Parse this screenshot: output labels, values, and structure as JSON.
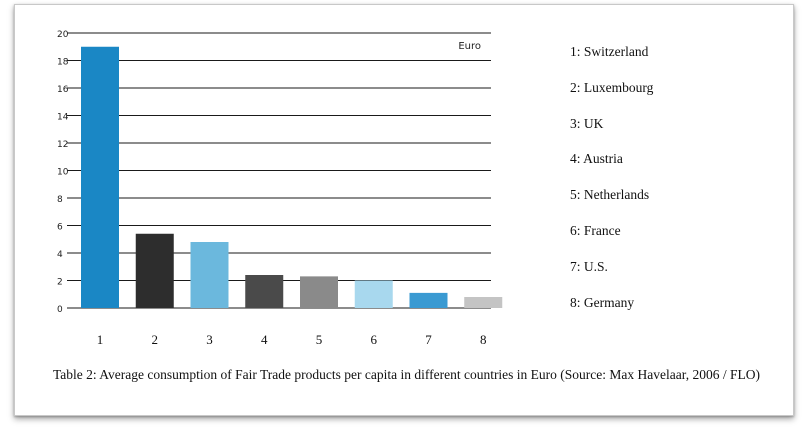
{
  "chart_data": {
    "type": "bar",
    "categories": [
      "1",
      "2",
      "3",
      "4",
      "5",
      "6",
      "7",
      "8"
    ],
    "values": [
      19,
      5.4,
      4.8,
      2.4,
      2.3,
      2.0,
      1.1,
      0.8
    ],
    "colors": [
      "#1a87c5",
      "#2d2d2d",
      "#6bb8dd",
      "#4a4a4a",
      "#8a8a8a",
      "#a8d8ee",
      "#3a9ad2",
      "#c4c4c4"
    ],
    "ylim": [
      0,
      20
    ],
    "yticks": [
      "0",
      "2",
      "4",
      "6",
      "8",
      "10",
      "12",
      "14",
      "16",
      "18",
      "20"
    ],
    "unit_label": "Euro",
    "grid": true,
    "legend_position": "right",
    "legend": [
      "1: Switzerland",
      "2: Luxembourg",
      "3: UK",
      "4: Austria",
      "5: Netherlands",
      "6: France",
      "7: U.S.",
      "8: Germany"
    ]
  },
  "caption": "Table 2: Average consumption of Fair Trade products per capita in different countries in Euro (Source: Max Havelaar, 2006 / FLO)"
}
